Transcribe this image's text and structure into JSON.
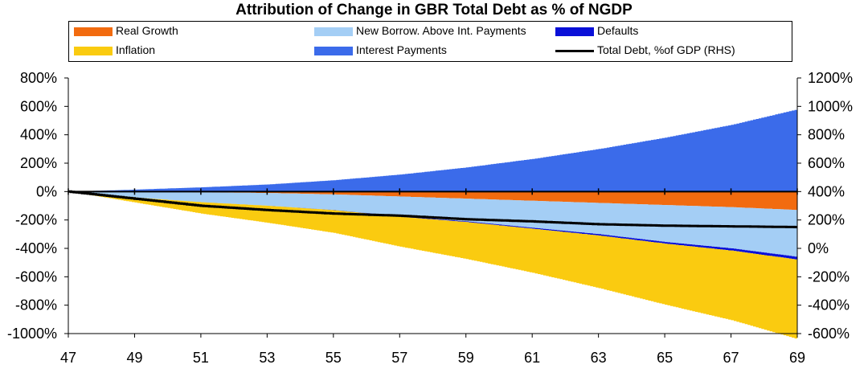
{
  "title": "Attribution of Change in GBR Total Debt as % of NGDP",
  "legend": [
    {
      "label": "Real Growth",
      "color": "#F26B0F",
      "kind": "area"
    },
    {
      "label": "New Borrow. Above Int. Payments",
      "color": "#A4CEF5",
      "kind": "area"
    },
    {
      "label": "Defaults",
      "color": "#0A10D8",
      "kind": "area"
    },
    {
      "label": "Inflation",
      "color": "#FACB10",
      "kind": "area"
    },
    {
      "label": "Interest Payments",
      "color": "#3B6BEA",
      "kind": "area"
    },
    {
      "label": "Total Debt, %of GDP (RHS)",
      "color": "#000000",
      "kind": "line"
    }
  ],
  "chart_data": {
    "type": "area",
    "title": "Attribution of Change in GBR Total Debt as % of NGDP",
    "x": [
      47,
      49,
      51,
      53,
      55,
      57,
      59,
      61,
      63,
      65,
      67,
      69
    ],
    "x_tick_labels": [
      "47",
      "49",
      "51",
      "53",
      "55",
      "57",
      "59",
      "61",
      "63",
      "65",
      "67",
      "69"
    ],
    "y_left": {
      "ylim": [
        -1000,
        800
      ],
      "ticks": [
        800,
        600,
        400,
        200,
        0,
        -200,
        -400,
        -600,
        -800,
        -1000
      ],
      "tick_labels": [
        "800%",
        "600%",
        "400%",
        "200%",
        "0%",
        "-200%",
        "-400%",
        "-600%",
        "-800%",
        "-1000%"
      ]
    },
    "y_right": {
      "ylim": [
        -600,
        1200
      ],
      "ticks": [
        1200,
        1000,
        800,
        600,
        400,
        200,
        0,
        -200,
        -400,
        -600
      ],
      "tick_labels": [
        "1200%",
        "1000%",
        "800%",
        "600%",
        "400%",
        "200%",
        "0%",
        "-200%",
        "-400%",
        "-600%"
      ]
    },
    "grid": false,
    "legend_position": "top",
    "stacked": true,
    "series": [
      {
        "name": "Interest Payments",
        "axis": "left",
        "color": "#3B6BEA",
        "values": [
          0,
          14,
          30,
          50,
          80,
          120,
          170,
          230,
          300,
          380,
          470,
          580
        ]
      },
      {
        "name": "Real Growth",
        "axis": "left",
        "color": "#F26B0F",
        "values": [
          0,
          -2,
          -5,
          -10,
          -20,
          -35,
          -50,
          -65,
          -80,
          -95,
          -110,
          -130
        ]
      },
      {
        "name": "New Borrow. Above Int. Payments",
        "axis": "left",
        "color": "#A4CEF5",
        "values": [
          0,
          -40,
          -70,
          -90,
          -110,
          -140,
          -160,
          -190,
          -220,
          -260,
          -290,
          -330
        ]
      },
      {
        "name": "Defaults",
        "axis": "left",
        "color": "#0A10D8",
        "values": [
          0,
          0,
          0,
          0,
          -1,
          -3,
          -5,
          -7,
          -10,
          -12,
          -16,
          -20
        ]
      },
      {
        "name": "Inflation",
        "axis": "left",
        "color": "#FACB10",
        "values": [
          0,
          -35,
          -80,
          -120,
          -160,
          -210,
          -260,
          -310,
          -370,
          -430,
          -490,
          -560
        ]
      },
      {
        "name": "Total Debt, %of GDP (RHS)",
        "axis": "right",
        "color": "#000000",
        "kind": "line",
        "values": [
          400,
          350,
          300,
          270,
          245,
          230,
          205,
          190,
          170,
          160,
          155,
          150
        ]
      }
    ]
  }
}
